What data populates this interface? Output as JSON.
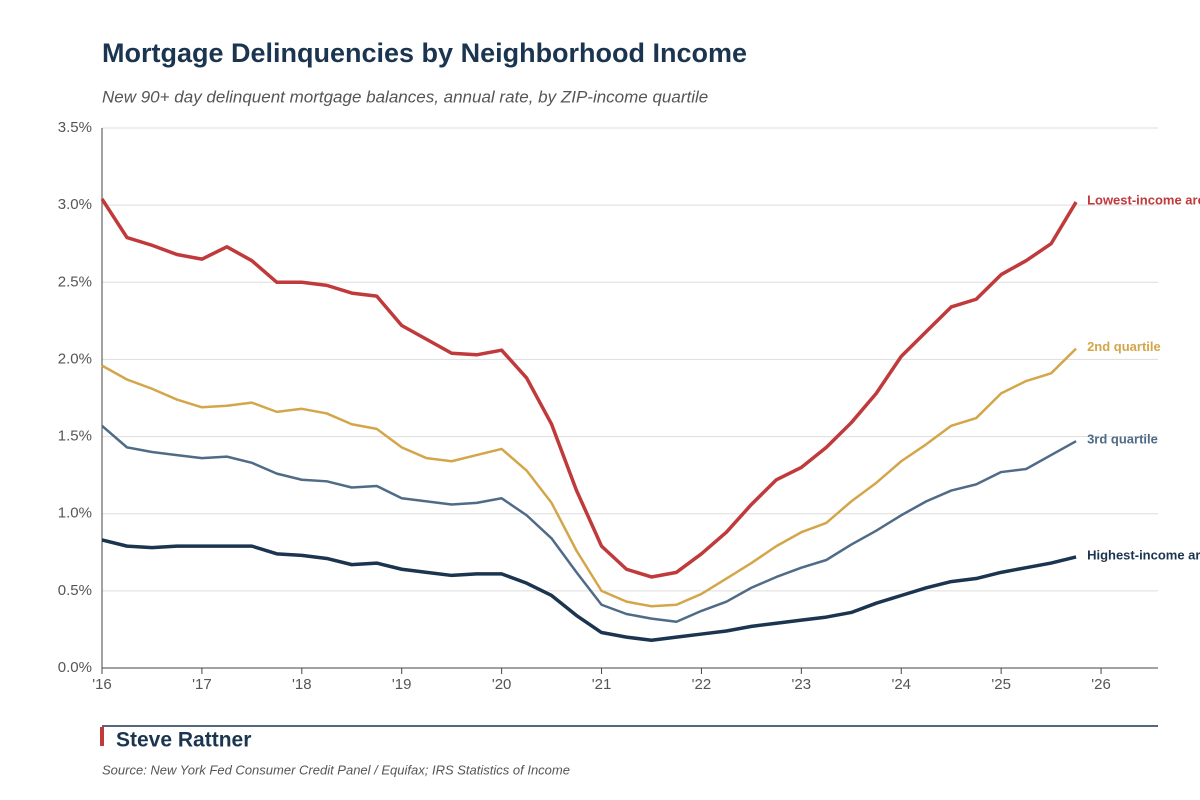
{
  "chart_data": {
    "type": "line",
    "title": "Mortgage Delinquencies by Neighborhood Income",
    "subtitle": "New 90+ day delinquent mortgage balances, annual rate, by ZIP-income quartile",
    "brand": "Steve Rattner",
    "source": "Source: New York Fed Consumer Credit Panel / Equifax; IRS Statistics of Income",
    "x": [
      2016,
      2016.25,
      2016.5,
      2016.75,
      2017,
      2017.25,
      2017.5,
      2017.75,
      2018,
      2018.25,
      2018.5,
      2018.75,
      2019,
      2019.25,
      2019.5,
      2019.75,
      2020,
      2020.25,
      2020.5,
      2020.75,
      2021,
      2021.25,
      2021.5,
      2021.75,
      2022,
      2022.25,
      2022.5,
      2022.75,
      2023,
      2023.25,
      2023.5,
      2023.75,
      2024,
      2024.25,
      2024.5,
      2024.75,
      2025,
      2025.25,
      2025.5,
      2025.75
    ],
    "series": [
      {
        "name": "Lowest-income areas",
        "color": "#c0393b",
        "width": 3.5,
        "values": [
          3.04,
          2.79,
          2.74,
          2.68,
          2.65,
          2.73,
          2.64,
          2.5,
          2.5,
          2.48,
          2.43,
          2.41,
          2.22,
          2.13,
          2.04,
          2.03,
          2.06,
          1.88,
          1.58,
          1.15,
          0.79,
          0.64,
          0.59,
          0.62,
          0.74,
          0.88,
          1.06,
          1.22,
          1.3,
          1.43,
          1.59,
          1.78,
          2.02,
          2.18,
          2.34,
          2.39,
          2.55,
          2.64,
          2.75,
          3.02
        ]
      },
      {
        "name": "2nd quartile",
        "color": "#d4a64a",
        "width": 2.5,
        "values": [
          1.96,
          1.87,
          1.81,
          1.74,
          1.69,
          1.7,
          1.72,
          1.66,
          1.68,
          1.65,
          1.58,
          1.55,
          1.43,
          1.36,
          1.34,
          1.38,
          1.42,
          1.28,
          1.07,
          0.76,
          0.5,
          0.43,
          0.4,
          0.41,
          0.48,
          0.58,
          0.68,
          0.79,
          0.88,
          0.94,
          1.08,
          1.2,
          1.34,
          1.45,
          1.57,
          1.62,
          1.78,
          1.86,
          1.91,
          2.07
        ]
      },
      {
        "name": "3rd quartile",
        "color": "#4f6b87",
        "width": 2.5,
        "values": [
          1.57,
          1.43,
          1.4,
          1.38,
          1.36,
          1.37,
          1.33,
          1.26,
          1.22,
          1.21,
          1.17,
          1.18,
          1.1,
          1.08,
          1.06,
          1.07,
          1.1,
          0.99,
          0.84,
          0.62,
          0.41,
          0.35,
          0.32,
          0.3,
          0.37,
          0.43,
          0.52,
          0.59,
          0.65,
          0.7,
          0.8,
          0.89,
          0.99,
          1.08,
          1.15,
          1.19,
          1.27,
          1.29,
          1.38,
          1.47
        ]
      },
      {
        "name": "Highest-income areas",
        "color": "#1b3550",
        "width": 3.5,
        "values": [
          0.83,
          0.79,
          0.78,
          0.79,
          0.79,
          0.79,
          0.79,
          0.74,
          0.73,
          0.71,
          0.67,
          0.68,
          0.64,
          0.62,
          0.6,
          0.61,
          0.61,
          0.55,
          0.47,
          0.34,
          0.23,
          0.2,
          0.18,
          0.2,
          0.22,
          0.24,
          0.27,
          0.29,
          0.31,
          0.33,
          0.36,
          0.42,
          0.47,
          0.52,
          0.56,
          0.58,
          0.62,
          0.65,
          0.68,
          0.72
        ]
      }
    ],
    "xlim": [
      2016,
      2026.57
    ],
    "xticks": [
      {
        "value": 2016,
        "label": "'16"
      },
      {
        "value": 2017,
        "label": "'17"
      },
      {
        "value": 2018,
        "label": "'18"
      },
      {
        "value": 2019,
        "label": "'19"
      },
      {
        "value": 2020,
        "label": "'20"
      },
      {
        "value": 2021,
        "label": "'21"
      },
      {
        "value": 2022,
        "label": "'22"
      },
      {
        "value": 2023,
        "label": "'23"
      },
      {
        "value": 2024,
        "label": "'24"
      },
      {
        "value": 2025,
        "label": "'25"
      },
      {
        "value": 2026,
        "label": "'26"
      }
    ],
    "ylim": [
      0,
      3.5
    ],
    "yticks": [
      {
        "value": 0,
        "label": "0.0%"
      },
      {
        "value": 0.5,
        "label": "0.5%"
      },
      {
        "value": 1,
        "label": "1.0%"
      },
      {
        "value": 1.5,
        "label": "1.5%"
      },
      {
        "value": 2,
        "label": "2.0%"
      },
      {
        "value": 2.5,
        "label": "2.5%"
      },
      {
        "value": 3,
        "label": "3.0%"
      },
      {
        "value": 3.5,
        "label": "3.5%"
      }
    ],
    "grid": true
  }
}
